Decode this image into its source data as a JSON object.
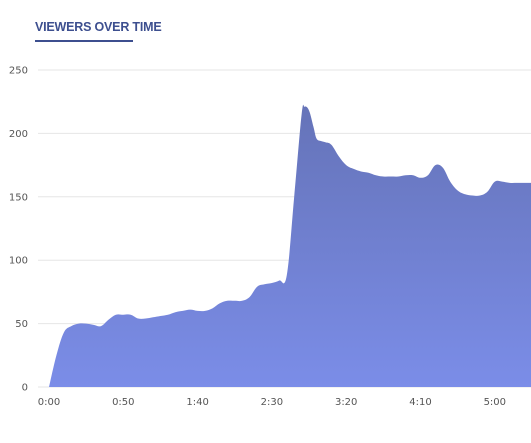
{
  "chart_data": {
    "type": "area",
    "title": "VIEWERS OVER TIME",
    "xlabel": "",
    "ylabel": "",
    "ylim": [
      0,
      250
    ],
    "yticks": [
      0,
      50,
      100,
      150,
      200,
      250
    ],
    "xlim": [
      0,
      325
    ],
    "xticks": [
      {
        "value": 0,
        "label": "0:00"
      },
      {
        "value": 50,
        "label": "0:50"
      },
      {
        "value": 100,
        "label": "1:40"
      },
      {
        "value": 150,
        "label": "2:30"
      },
      {
        "value": 200,
        "label": "3:20"
      },
      {
        "value": 250,
        "label": "4:10"
      },
      {
        "value": 300,
        "label": "5:00"
      }
    ],
    "grid": true,
    "colors": {
      "fill_top": "#6573b8",
      "fill_bottom": "#7b8de8",
      "grid": "#e6e6e6",
      "title": "#3d4f8f"
    },
    "series": [
      {
        "x": [
          0,
          5,
          10,
          15,
          20,
          25,
          30,
          35,
          40,
          45,
          50,
          55,
          60,
          65,
          70,
          75,
          80,
          85,
          90,
          95,
          100,
          105,
          110,
          115,
          120,
          125,
          130,
          135,
          140,
          145,
          150,
          155,
          160,
          165,
          170,
          172,
          175,
          178,
          180,
          183,
          186,
          190,
          195,
          200,
          205,
          210,
          215,
          220,
          225,
          230,
          235,
          240,
          245,
          250,
          255,
          260,
          265,
          270,
          275,
          280,
          285,
          290,
          295,
          300,
          305,
          310,
          315,
          320,
          325
        ],
        "values": [
          0,
          25,
          43,
          48,
          50,
          50,
          49,
          48,
          53,
          57,
          57,
          57,
          54,
          54,
          55,
          56,
          57,
          59,
          60,
          61,
          60,
          60,
          62,
          66,
          68,
          68,
          68,
          71,
          79,
          81,
          82,
          84,
          88,
          150,
          215,
          221,
          218,
          205,
          196,
          194,
          193,
          191,
          182,
          175,
          172,
          170,
          169,
          167,
          166,
          166,
          166,
          167,
          167,
          165,
          167,
          175,
          173,
          162,
          155,
          152,
          151,
          151,
          154,
          162,
          162,
          161,
          161,
          161,
          161
        ]
      }
    ]
  }
}
